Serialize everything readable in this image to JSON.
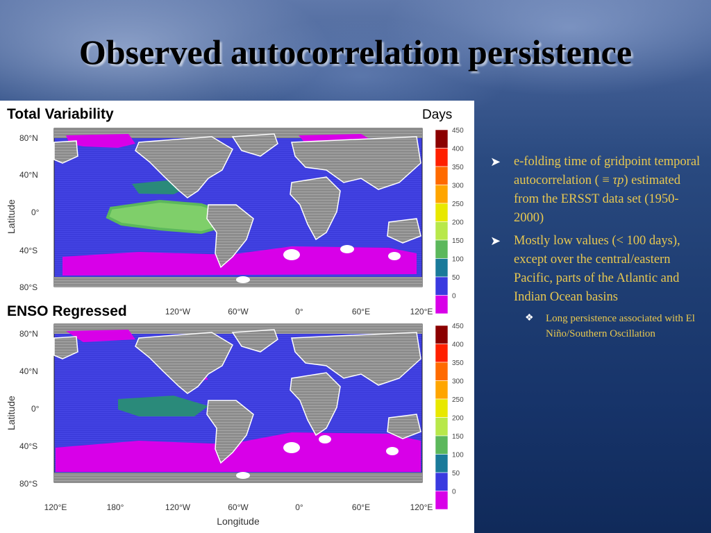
{
  "title": "Observed autocorrelation persistence",
  "panels": {
    "top_label": "Total Variability",
    "bottom_label": "ENSO Regressed",
    "colorbar_label": "Days",
    "colorbar_ticks": [
      "450",
      "400",
      "350",
      "300",
      "250",
      "200",
      "150",
      "100",
      "50",
      "0"
    ],
    "colorbar_colors": [
      "#8b0000",
      "#ff2000",
      "#ff6a00",
      "#ffa500",
      "#e8e800",
      "#b8e84a",
      "#5cb85c",
      "#1a7a9a",
      "#3a3ae0",
      "#d800e8"
    ],
    "lat_ticks": [
      "80°N",
      "40°N",
      "0°",
      "40°S",
      "80°S"
    ],
    "lon_ticks_top": [
      "120°W",
      "60°W",
      "0°",
      "60°E",
      "120°E"
    ],
    "lon_ticks_bottom": [
      "120°E",
      "180°",
      "120°W",
      "60°W",
      "0°",
      "60°E",
      "120°E"
    ],
    "ylabel": "Latitude",
    "xlabel": "Longitude"
  },
  "bullets": [
    {
      "pre": "e-folding time of gridpoint temporal autocorrelation ( ≡ ",
      "tau": "τp",
      "post": ") estimated from the ERSST data set (1950-2000)"
    },
    {
      "text": "Mostly low values (< 100 days), except over the central/eastern Pacific, parts of the Atlantic and Indian Ocean basins"
    }
  ],
  "sub_bullets": [
    {
      "text": "Long persistence associated with El Niño/Southern Oscillation"
    }
  ],
  "colors": {
    "bullet_text": "#e8c850",
    "land": "#8c8c8c",
    "ocean": "#3c3cdc"
  }
}
